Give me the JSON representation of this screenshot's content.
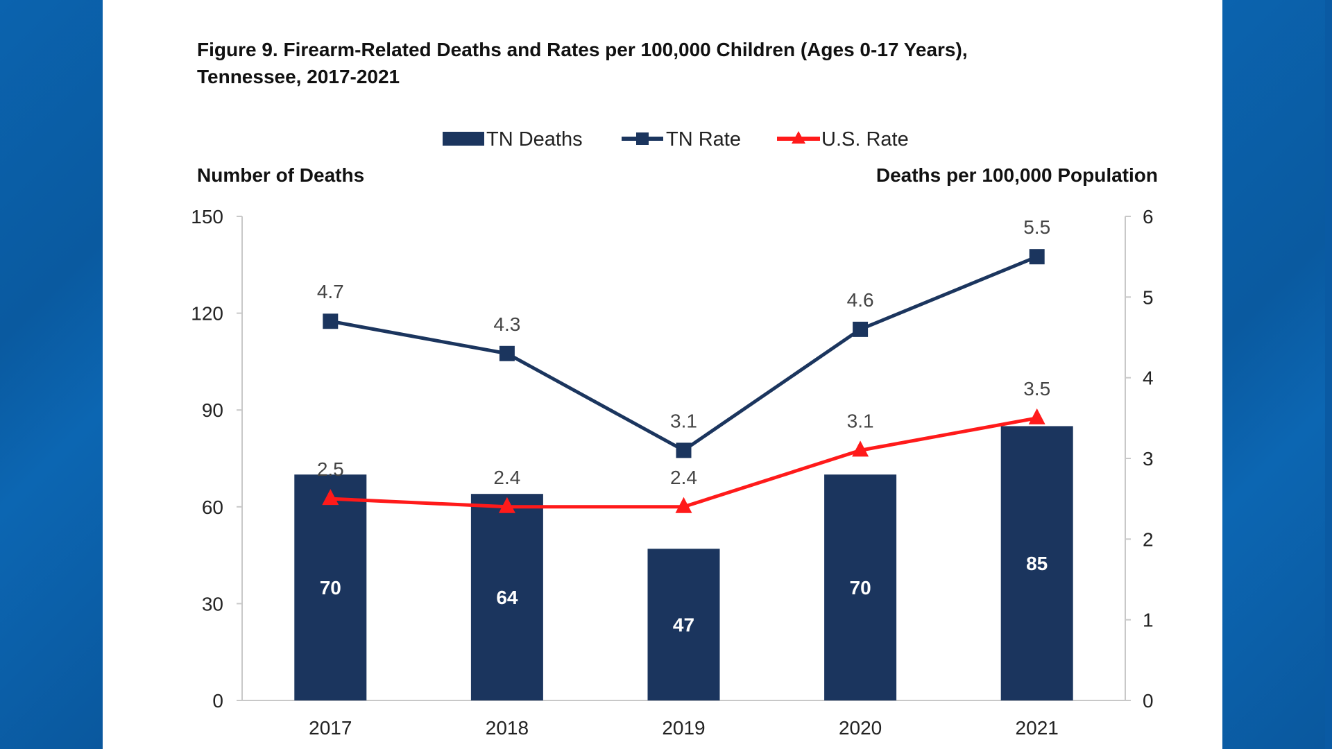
{
  "chart_data": {
    "type": "bar+line",
    "title_line1": "Figure 9. Firearm-Related Deaths and Rates per 100,000 Children (Ages 0-17 Years),",
    "title_line2": "Tennessee, 2017-2021",
    "categories": [
      "2017",
      "2018",
      "2019",
      "2020",
      "2021"
    ],
    "ylabel_left": "Number of Deaths",
    "ylabel_right": "Deaths per 100,000 Population",
    "ylim_left": [
      0,
      150
    ],
    "yticks_left": [
      0,
      30,
      60,
      90,
      120,
      150
    ],
    "ylim_right": [
      0,
      6
    ],
    "yticks_right": [
      0,
      1,
      2,
      3,
      4,
      5,
      6
    ],
    "legend_placement": "top",
    "grid": false,
    "series": [
      {
        "name": "TN Deaths",
        "type": "bar",
        "axis": "left",
        "color": "#1b355e",
        "values": [
          70,
          64,
          47,
          70,
          85
        ]
      },
      {
        "name": "TN Rate",
        "type": "line",
        "marker": "square",
        "axis": "right",
        "color": "#1b355e",
        "values": [
          4.7,
          4.3,
          3.1,
          4.6,
          5.5
        ]
      },
      {
        "name": "U.S. Rate",
        "type": "line",
        "marker": "triangle",
        "axis": "right",
        "color": "#ff1a1a",
        "values": [
          2.5,
          2.4,
          2.4,
          3.1,
          3.5
        ]
      }
    ]
  }
}
